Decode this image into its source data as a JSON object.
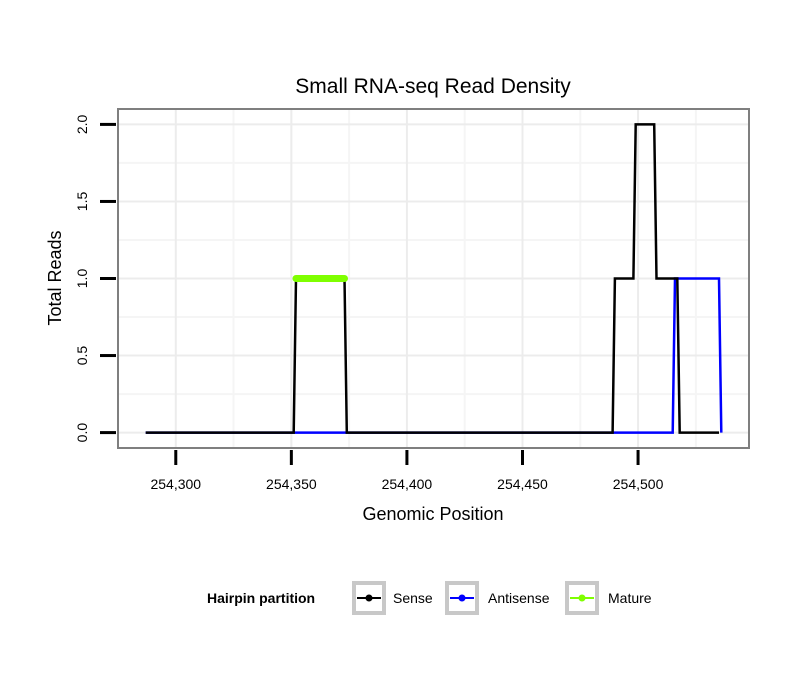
{
  "chart_data": {
    "type": "line",
    "title": "Small RNA-seq Read Density",
    "xlabel": "Genomic Position",
    "ylabel": "Total Reads",
    "xlim": [
      254275,
      254548
    ],
    "ylim": [
      -0.1,
      2.1
    ],
    "x_ticks": [
      254300,
      254350,
      254400,
      254450,
      254500
    ],
    "x_tick_labels": [
      "254,300",
      "254,350",
      "254,400",
      "254,450",
      "254,500"
    ],
    "y_ticks": [
      0,
      0.5,
      1,
      1.5,
      2
    ],
    "y_tick_labels": [
      "0.0",
      "0.5",
      "1.0",
      "1.5",
      "2.0"
    ],
    "grid": true,
    "legend": {
      "title": "Hairpin partition",
      "position": "bottom",
      "entries": [
        "Sense",
        "Antisense",
        "Mature"
      ]
    },
    "series": [
      {
        "name": "Antisense",
        "color": "#0000ff",
        "x": [
          254287,
          254352,
          254373,
          254374,
          254515,
          254516,
          254535,
          254536
        ],
        "y": [
          0,
          0,
          0,
          0,
          0,
          1,
          1,
          0
        ]
      },
      {
        "name": "Sense",
        "color": "#000000",
        "x": [
          254287,
          254351,
          254352,
          254373,
          254374,
          254489,
          254490,
          254498,
          254499,
          254507,
          254508,
          254517,
          254518,
          254535
        ],
        "y": [
          0,
          0,
          1,
          1,
          0,
          0,
          1,
          1,
          2,
          2,
          1,
          1,
          0,
          0
        ]
      },
      {
        "name": "Mature",
        "color": "#7fff00",
        "x": [
          254352,
          254373
        ],
        "y": [
          1,
          1
        ]
      }
    ]
  }
}
